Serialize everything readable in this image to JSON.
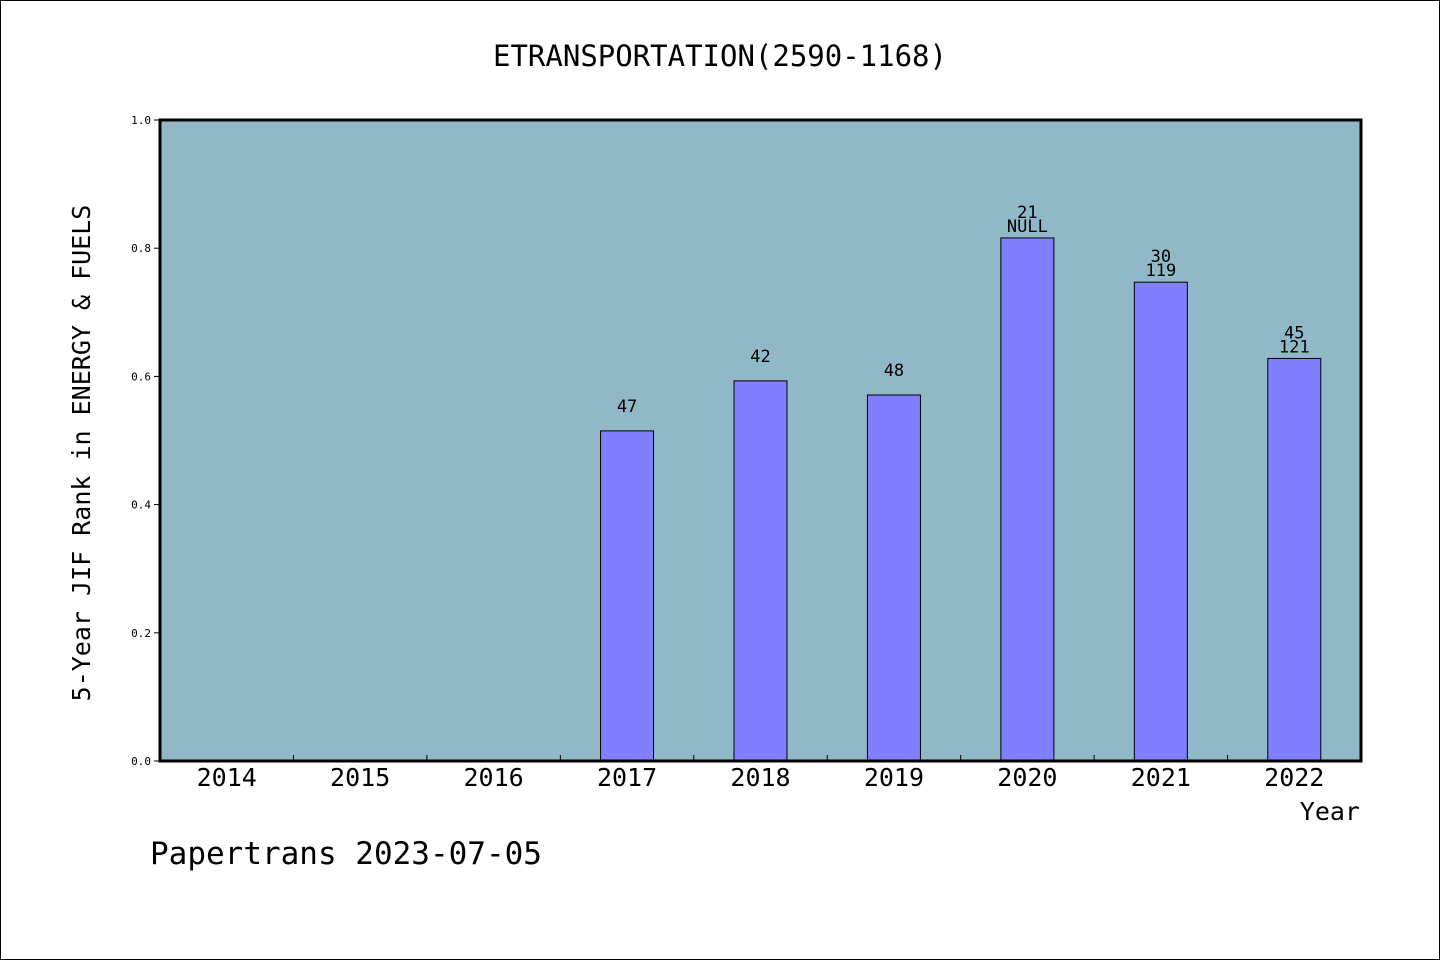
{
  "chart_data": {
    "type": "bar",
    "title": "ETRANSPORTATION(2590-1168)",
    "xlabel": "Year",
    "ylabel": "5-Year JIF Rank in ENERGY & FUELS",
    "categories": [
      "2014",
      "2015",
      "2016",
      "2017",
      "2018",
      "2019",
      "2020",
      "2021",
      "2022"
    ],
    "values": [
      null,
      null,
      null,
      0.515,
      0.593,
      0.571,
      0.816,
      0.747,
      0.628
    ],
    "bar_labels": [
      [],
      [],
      [],
      [
        "47"
      ],
      [
        "42"
      ],
      [
        "48"
      ],
      [
        "21",
        "NULL"
      ],
      [
        "30",
        "119"
      ],
      [
        "45",
        "121"
      ]
    ],
    "ylim": [
      0,
      1.0
    ],
    "yticks": [
      "0.0",
      "0.2",
      "0.4",
      "0.6",
      "0.8",
      "1.0"
    ],
    "grid": false,
    "legend": "none",
    "colors": {
      "plot_background": "#90b8c6",
      "bar_fill": "#8080ff",
      "axis": "#000000"
    }
  },
  "footer": {
    "text": "Papertrans 2023-07-05"
  }
}
